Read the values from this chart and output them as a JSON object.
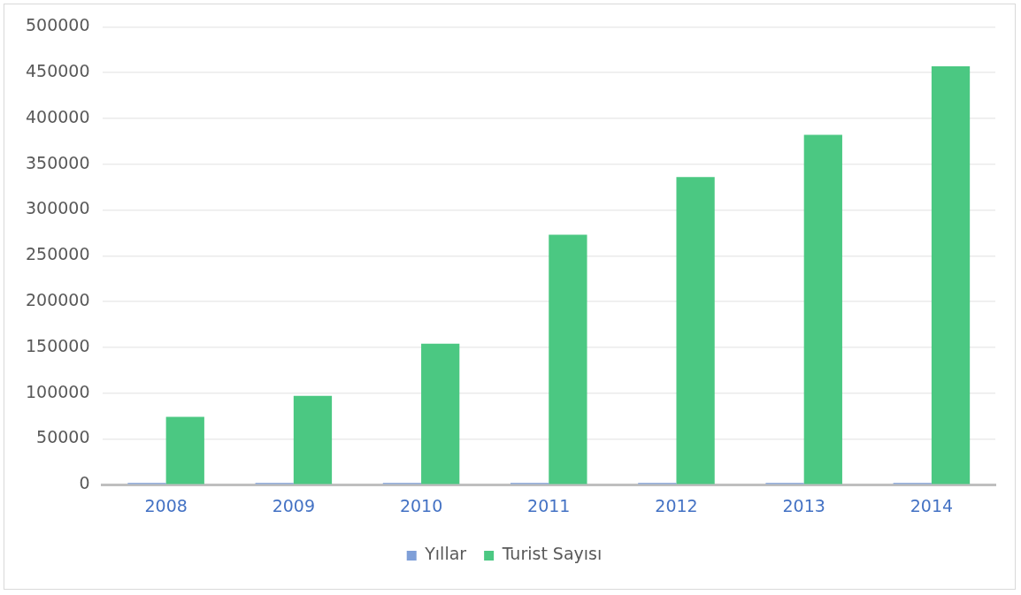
{
  "chart_data": {
    "type": "bar",
    "categories": [
      "2008",
      "2009",
      "2010",
      "2011",
      "2012",
      "2013",
      "2014"
    ],
    "series": [
      {
        "name": "Yıllar",
        "color": "#7f9fd8",
        "values": [
          2000,
          2000,
          2000,
          2000,
          2000,
          2000,
          2000
        ]
      },
      {
        "name": "Turist Sayısı",
        "color": "#4bc882",
        "values": [
          74000,
          97000,
          154000,
          273000,
          336000,
          382000,
          457000
        ]
      }
    ],
    "ylim": [
      0,
      500000
    ],
    "yticks": [
      0,
      50000,
      100000,
      150000,
      200000,
      250000,
      300000,
      350000,
      400000,
      450000,
      500000
    ],
    "grid": "y",
    "legend": "bottom"
  }
}
